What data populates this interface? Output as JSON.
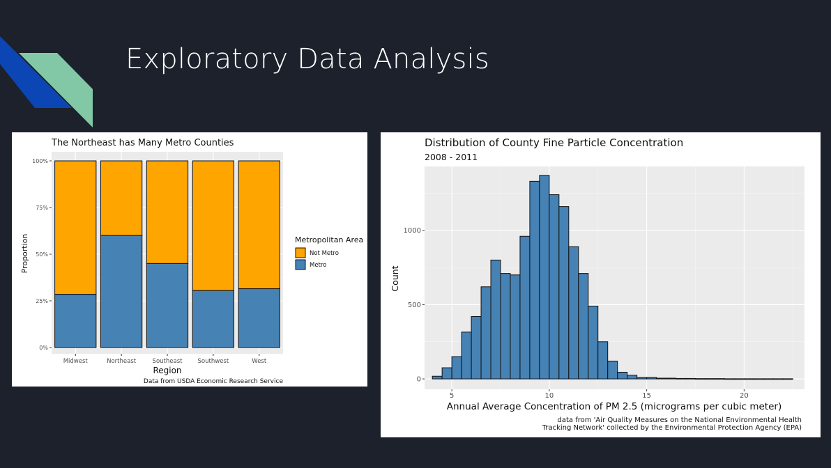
{
  "slide": {
    "title": "Exploratory Data Analysis",
    "colors": {
      "background": "#1c212c",
      "accent_blue": "#0b46b4",
      "accent_green": "#82c8a6"
    }
  },
  "chart_data": [
    {
      "type": "bar",
      "stacked": true,
      "title": "The Northeast has Many Metro Counties",
      "xlabel": "Region",
      "ylabel": "Proportion",
      "caption": "Data from USDA Economic Research Service",
      "categories": [
        "Midwest",
        "Northeast",
        "Southeast",
        "Southwest",
        "West"
      ],
      "yticks": [
        "0%",
        "25%",
        "50%",
        "75%",
        "100%"
      ],
      "ylim": [
        0,
        1
      ],
      "legend": {
        "title": "Metropolitan Area",
        "position": "right"
      },
      "series": [
        {
          "name": "Metro",
          "color": "#4682b4",
          "values": [
            0.285,
            0.6,
            0.45,
            0.305,
            0.315
          ]
        },
        {
          "name": "Not Metro",
          "color": "#ffa500",
          "values": [
            0.715,
            0.4,
            0.55,
            0.695,
            0.685
          ]
        }
      ],
      "grid": true
    },
    {
      "type": "bar",
      "histogram": true,
      "title": "Distribution of County Fine Particle Concentration",
      "subtitle": "2008 - 2011",
      "xlabel": "Annual Average Concentration of PM 2.5 (micrograms per cubic meter)",
      "ylabel": "Count",
      "caption_line1": "data from 'Air Quality Measures on the National Environmental Health",
      "caption_line2": "Tracking Network' collected by the Environmental Protection Agency (EPA)",
      "xticks": [
        5,
        10,
        15,
        20
      ],
      "yticks": [
        0,
        500,
        1000
      ],
      "xlim": [
        3.6,
        23.1
      ],
      "ylim": [
        -70,
        1430
      ],
      "bin_width": 0.5,
      "bin_start": 4.0,
      "color": "#4682b4",
      "values": [
        18,
        75,
        150,
        315,
        420,
        620,
        800,
        710,
        700,
        960,
        1330,
        1370,
        1240,
        1160,
        890,
        710,
        490,
        250,
        120,
        45,
        25,
        10,
        10,
        5,
        5,
        3,
        3,
        2,
        2,
        2,
        1,
        1,
        1,
        1,
        1,
        1,
        1
      ],
      "grid": true
    }
  ]
}
